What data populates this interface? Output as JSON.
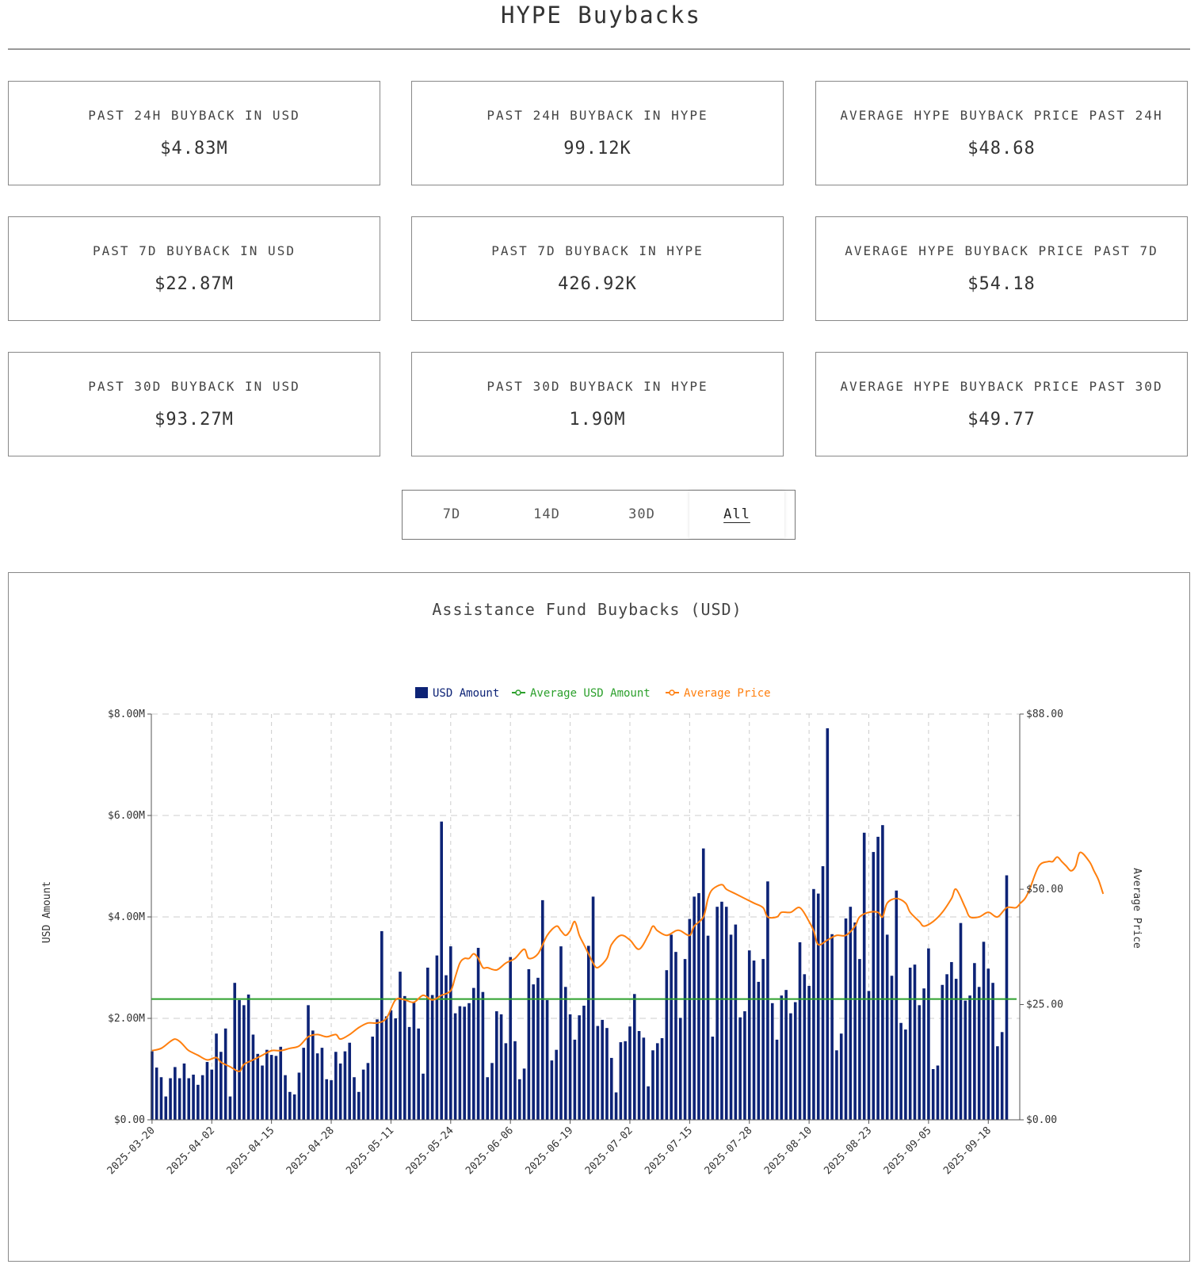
{
  "page": {
    "title": "HYPE Buybacks"
  },
  "stats": [
    {
      "label": "PAST 24H BUYBACK IN USD",
      "value": "$4.83M"
    },
    {
      "label": "PAST 24H BUYBACK IN HYPE",
      "value": "99.12K"
    },
    {
      "label": "AVERAGE HYPE BUYBACK PRICE PAST 24H",
      "value": "$48.68"
    },
    {
      "label": "PAST 7D BUYBACK IN USD",
      "value": "$22.87M"
    },
    {
      "label": "PAST 7D BUYBACK IN HYPE",
      "value": "426.92K"
    },
    {
      "label": "AVERAGE HYPE BUYBACK PRICE PAST 7D",
      "value": "$54.18"
    },
    {
      "label": "PAST 30D BUYBACK IN USD",
      "value": "$93.27M"
    },
    {
      "label": "PAST 30D BUYBACK IN HYPE",
      "value": "1.90M"
    },
    {
      "label": "AVERAGE HYPE BUYBACK PRICE PAST 30D",
      "value": "$49.77"
    }
  ],
  "range_tabs": {
    "options": [
      "7D",
      "14D",
      "30D",
      "All"
    ],
    "selected": "All"
  },
  "colors": {
    "bar": "#0d2376",
    "average_line": "#2ca02c",
    "price_line": "#ff7f0e",
    "grid": "#cccccc"
  },
  "chart_data": {
    "type": "bar",
    "title": "Assistance Fund Buybacks (USD)",
    "ylabel": "USD Amount",
    "y2label": "Average Price",
    "legend": [
      {
        "name": "USD Amount",
        "marker": "square"
      },
      {
        "name": "Average USD Amount",
        "marker": "line-circle"
      },
      {
        "name": "Average Price",
        "marker": "line-circle"
      }
    ],
    "legend_position": "top-center",
    "grid": true,
    "ylim": [
      0,
      8000000
    ],
    "y2lim": [
      0,
      88
    ],
    "y_ticks": [
      "$0.00",
      "$2.00M",
      "$4.00M",
      "$6.00M",
      "$8.00M"
    ],
    "y2_ticks": [
      "$0.00",
      "$25.00",
      "$50.00",
      "$88.00"
    ],
    "y2_tick_values": [
      0,
      25,
      50,
      88
    ],
    "x_ticks": [
      "2025-03-20",
      "2025-04-02",
      "2025-04-15",
      "2025-04-28",
      "2025-05-11",
      "2025-05-24",
      "2025-06-06",
      "2025-06-19",
      "2025-07-02",
      "2025-07-15",
      "2025-07-28",
      "2025-08-10",
      "2025-08-23",
      "2025-09-05",
      "2025-09-18"
    ],
    "x_start": "2025-03-20",
    "x_end": "2025-09-25",
    "average_usd_amount": 2380000,
    "series": [
      {
        "name": "USD Amount",
        "unit": "USD (millions)",
        "values": [
          1.35,
          1.03,
          0.84,
          0.46,
          0.82,
          1.04,
          0.82,
          1.11,
          0.82,
          0.89,
          0.69,
          0.88,
          1.14,
          0.99,
          1.7,
          1.34,
          1.8,
          0.46,
          2.7,
          2.36,
          2.26,
          2.47,
          1.68,
          1.3,
          1.07,
          1.38,
          1.28,
          1.26,
          1.44,
          0.88,
          0.55,
          0.5,
          0.93,
          1.42,
          2.26,
          1.76,
          1.31,
          1.42,
          0.8,
          0.78,
          1.34,
          1.11,
          1.35,
          1.52,
          0.84,
          0.55,
          0.99,
          1.12,
          1.64,
          1.98,
          3.72,
          2.04,
          2.16,
          2.0,
          2.92,
          2.44,
          1.83,
          2.31,
          1.8,
          0.91,
          3.0,
          2.46,
          3.24,
          5.88,
          2.85,
          3.42,
          2.1,
          2.24,
          2.23,
          2.3,
          2.6,
          3.39,
          2.52,
          0.84,
          1.12,
          2.14,
          2.08,
          1.51,
          3.21,
          1.55,
          0.8,
          1.01,
          2.97,
          2.67,
          2.8,
          4.33,
          2.36,
          1.17,
          1.38,
          3.42,
          2.62,
          2.08,
          1.58,
          2.06,
          2.25,
          3.43,
          4.4,
          1.85,
          1.97,
          1.81,
          1.22,
          0.54,
          1.53,
          1.55,
          1.84,
          2.48,
          1.75,
          1.62,
          0.66,
          1.37,
          1.51,
          1.61,
          2.95,
          3.65,
          3.31,
          2.01,
          3.17,
          3.96,
          4.4,
          4.47,
          5.35,
          3.63,
          1.64,
          4.2,
          4.3,
          4.2,
          3.65,
          3.85,
          2.02,
          2.14,
          3.34,
          3.14,
          2.72,
          3.17,
          4.7,
          2.3,
          1.58,
          2.45,
          2.56,
          2.1,
          2.32,
          3.5,
          2.87,
          2.64,
          4.55,
          4.46,
          5.0,
          7.72,
          3.66,
          1.37,
          1.7,
          3.97,
          4.2,
          3.89,
          3.17,
          5.66,
          2.54,
          5.28,
          5.58,
          5.81,
          3.65,
          2.84,
          4.52,
          1.91,
          1.78,
          3.0,
          3.06,
          2.26,
          2.59,
          3.38,
          1.0,
          1.07,
          2.66,
          2.87,
          3.11,
          2.78,
          3.88,
          2.35,
          2.45,
          3.09,
          2.62,
          3.51,
          2.98,
          2.7,
          1.45,
          1.73,
          4.82
        ]
      },
      {
        "name": "Average Price",
        "unit": "USD",
        "points": [
          [
            0,
            15
          ],
          [
            2,
            15.5
          ],
          [
            4,
            17
          ],
          [
            5,
            17.5
          ],
          [
            6,
            17
          ],
          [
            7,
            16
          ],
          [
            8,
            15
          ],
          [
            10,
            14
          ],
          [
            12,
            13
          ],
          [
            14,
            13.5
          ],
          [
            15,
            12.5
          ],
          [
            17,
            11.5
          ],
          [
            19,
            10.5
          ],
          [
            20,
            12
          ],
          [
            22,
            13
          ],
          [
            24,
            14
          ],
          [
            26,
            15
          ],
          [
            28,
            15
          ],
          [
            30,
            15.5
          ],
          [
            32,
            16
          ],
          [
            34,
            18
          ],
          [
            36,
            18.5
          ],
          [
            38,
            18
          ],
          [
            40,
            18.5
          ],
          [
            41,
            17.5
          ],
          [
            43,
            18.5
          ],
          [
            45,
            20
          ],
          [
            47,
            21
          ],
          [
            49,
            21
          ],
          [
            51,
            22
          ],
          [
            53,
            26
          ],
          [
            55,
            26
          ],
          [
            57,
            25.5
          ],
          [
            59,
            27
          ],
          [
            61,
            26
          ],
          [
            63,
            27
          ],
          [
            65,
            28
          ],
          [
            66,
            31
          ],
          [
            67,
            34
          ],
          [
            68,
            35
          ],
          [
            69,
            35
          ],
          [
            70,
            36
          ],
          [
            71,
            35
          ],
          [
            72,
            33
          ],
          [
            73,
            33
          ],
          [
            75,
            32.5
          ],
          [
            77,
            34
          ],
          [
            79,
            35
          ],
          [
            81,
            37
          ],
          [
            82,
            35
          ],
          [
            84,
            36
          ],
          [
            86,
            40
          ],
          [
            88,
            42
          ],
          [
            89,
            41
          ],
          [
            90,
            40
          ],
          [
            91,
            41
          ],
          [
            92,
            43
          ],
          [
            93,
            40
          ],
          [
            94,
            38
          ],
          [
            95,
            36
          ],
          [
            96,
            34
          ],
          [
            97,
            33
          ],
          [
            99,
            35
          ],
          [
            100,
            38
          ],
          [
            102,
            40
          ],
          [
            104,
            39
          ],
          [
            106,
            37
          ],
          [
            108,
            40
          ],
          [
            109,
            42
          ],
          [
            110,
            41
          ],
          [
            112,
            40
          ],
          [
            114,
            41
          ],
          [
            115,
            41
          ],
          [
            117,
            40
          ],
          [
            118,
            42
          ],
          [
            120,
            44
          ],
          [
            121,
            48
          ],
          [
            122,
            50
          ],
          [
            124,
            51
          ],
          [
            125,
            50
          ],
          [
            127,
            49
          ],
          [
            129,
            48
          ],
          [
            131,
            47
          ],
          [
            133,
            46
          ],
          [
            134,
            44
          ],
          [
            136,
            44
          ],
          [
            137,
            45
          ],
          [
            139,
            45
          ],
          [
            141,
            46
          ],
          [
            143,
            43
          ],
          [
            144,
            41
          ],
          [
            145,
            38
          ],
          [
            147,
            39
          ],
          [
            149,
            40
          ],
          [
            151,
            40
          ],
          [
            153,
            42
          ],
          [
            154,
            44
          ],
          [
            156,
            45
          ],
          [
            158,
            45
          ],
          [
            159,
            44
          ],
          [
            160,
            47
          ],
          [
            162,
            48
          ],
          [
            164,
            47
          ],
          [
            165,
            45
          ],
          [
            167,
            43
          ],
          [
            168,
            42
          ],
          [
            170,
            43
          ],
          [
            172,
            45
          ],
          [
            174,
            48
          ],
          [
            175,
            50
          ],
          [
            177,
            46
          ],
          [
            178,
            44
          ],
          [
            180,
            44
          ],
          [
            182,
            45
          ],
          [
            184,
            44
          ],
          [
            186,
            46
          ],
          [
            188,
            46
          ],
          [
            189,
            47
          ],
          [
            190,
            48
          ],
          [
            191,
            50
          ],
          [
            193,
            55
          ],
          [
            195,
            56
          ],
          [
            196,
            56
          ],
          [
            197,
            57
          ],
          [
            198,
            56
          ],
          [
            199,
            55
          ],
          [
            200,
            54
          ],
          [
            201,
            55
          ],
          [
            202,
            58
          ],
          [
            204,
            56
          ],
          [
            205,
            54
          ],
          [
            206,
            52
          ],
          [
            207,
            49
          ]
        ]
      }
    ]
  }
}
